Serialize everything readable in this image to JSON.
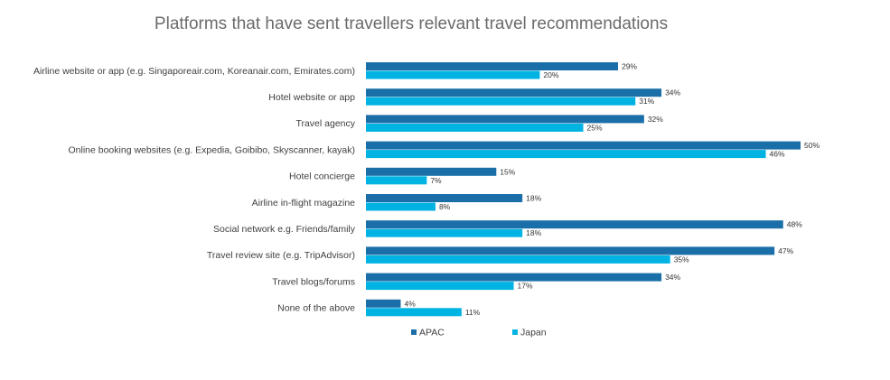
{
  "chart_data": {
    "type": "bar",
    "orientation": "horizontal",
    "title": "Platforms that have sent travellers relevant travel recommendations",
    "categories": [
      "Airline website or app (e.g. Singaporeair.com, Koreanair.com, Emirates.com)",
      "Hotel website or app",
      "Travel agency",
      "Online booking websites (e.g. Expedia, Goibibo, Skyscanner, kayak)",
      "Hotel concierge",
      "Airline in-flight magazine",
      "Social network e.g. Friends/family",
      "Travel review site (e.g. TripAdvisor)",
      "Travel blogs/forums",
      "None of the above"
    ],
    "series": [
      {
        "name": "APAC",
        "color": "#1b6fa8",
        "values": [
          29,
          34,
          32,
          50,
          15,
          18,
          48,
          47,
          34,
          4
        ]
      },
      {
        "name": "Japan",
        "color": "#00b3e3",
        "values": [
          20,
          31,
          25,
          46,
          7,
          8,
          18,
          35,
          17,
          11
        ]
      }
    ],
    "value_suffix": "%",
    "xlim": [
      0,
      50
    ],
    "grid": false,
    "legend": "bottom"
  }
}
